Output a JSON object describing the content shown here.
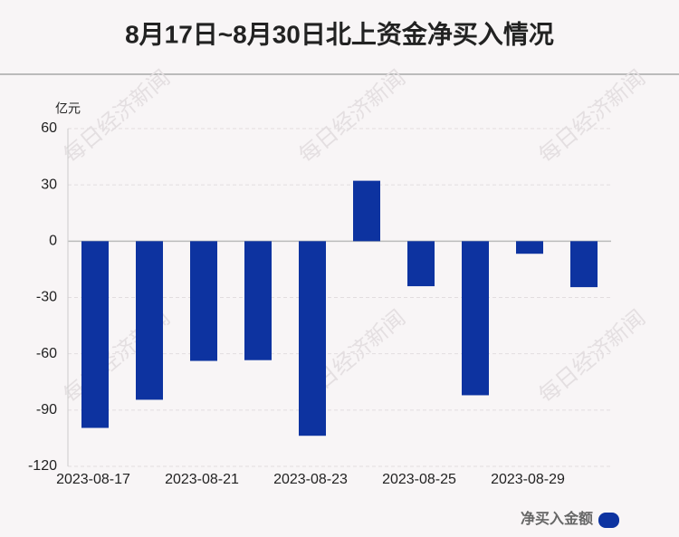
{
  "chart_data": {
    "type": "bar",
    "title": "8月17日~8月30日北上资金净买入情况",
    "y_unit": "亿元",
    "watermark": "每日经济新闻",
    "categories": [
      "2023-08-17",
      null,
      "2023-08-21",
      null,
      "2023-08-23",
      null,
      "2023-08-25",
      null,
      "2023-08-29",
      null
    ],
    "series": [
      {
        "name": "净买入金额",
        "color": "#0d33a0",
        "values": [
          -99.5,
          -84.5,
          -63.8,
          -63.4,
          -103.7,
          32.2,
          -24.0,
          -82.1,
          -6.7,
          -24.5
        ]
      }
    ],
    "ylim": [
      -120,
      60
    ],
    "yticks": [
      -120,
      -90,
      -60,
      -30,
      0,
      30,
      60
    ],
    "grid": true,
    "legend": "bottom-right"
  }
}
